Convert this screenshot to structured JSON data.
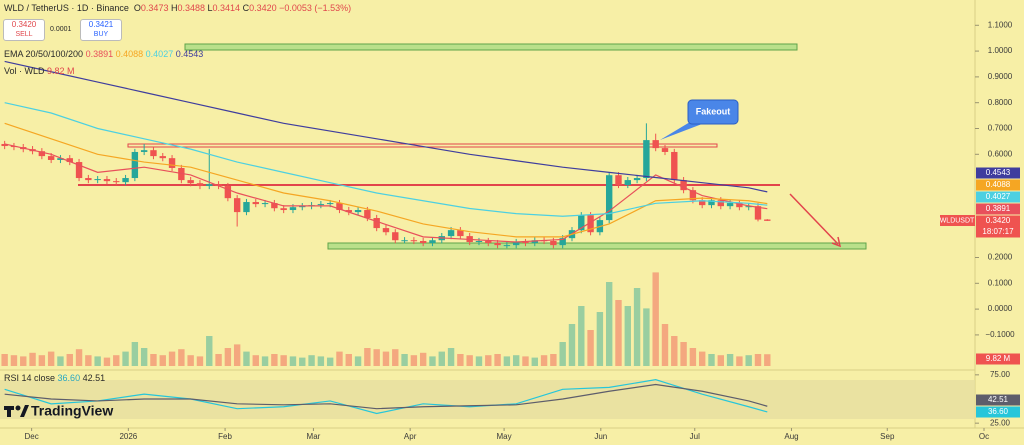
{
  "header": {
    "symbol": "WLD / TetherUS · 1D · Binance",
    "ohlc": [
      {
        "k": "O",
        "v": "0.3473"
      },
      {
        "k": "H",
        "v": "0.3488"
      },
      {
        "k": "L",
        "v": "0.3414"
      },
      {
        "k": "C",
        "v": "0.3420"
      }
    ],
    "change": "−0.0053 (−1.53%)",
    "sell": {
      "price": "0.3420",
      "label": "SELL"
    },
    "spread": "0.0001",
    "buy": {
      "price": "0.3421",
      "label": "BUY"
    },
    "ema_legend": {
      "name": "EMA 20/50/100/200",
      "values": [
        "0.3891",
        "0.4088",
        "0.4027",
        "0.4543"
      ]
    },
    "vol_legend": {
      "name": "Vol · WLD",
      "value": "9.82 M"
    },
    "rsi_legend": {
      "name": "RSI 14 close",
      "values": [
        "36.60",
        "42.51"
      ]
    },
    "symbol_tag": "WLDUSDT",
    "countdown": "18:07:17",
    "annotation": "Fakeout",
    "brand": "TradingView"
  },
  "chart_data": {
    "type": "candlestick",
    "up_color": "#26a69a",
    "down_color": "#ef5350",
    "open": [
      0.64,
      0.632,
      0.628,
      0.62,
      0.612,
      0.593,
      0.578,
      0.585,
      0.57,
      0.508,
      0.5,
      0.504,
      0.496,
      0.492,
      0.508,
      0.609,
      0.616,
      0.593,
      0.585,
      0.547,
      0.5,
      0.488,
      0.477,
      0.484,
      0.477,
      0.43,
      0.376,
      0.415,
      0.407,
      0.411,
      0.391,
      0.384,
      0.395,
      0.399,
      0.403,
      0.407,
      0.411,
      0.384,
      0.376,
      0.384,
      0.353,
      0.314,
      0.298,
      0.267,
      0.267,
      0.264,
      0.256,
      0.267,
      0.283,
      0.306,
      0.283,
      0.26,
      0.264,
      0.256,
      0.248,
      0.248,
      0.26,
      0.256,
      0.267,
      0.264,
      0.248,
      0.275,
      0.306,
      0.364,
      0.298,
      0.345,
      0.519,
      0.481,
      0.5,
      0.508,
      0.655,
      0.624,
      0.609,
      0.5,
      0.461,
      0.422,
      0.403,
      0.422,
      0.399,
      0.411,
      0.395,
      0.399,
      0.3473
    ],
    "high": [
      0.652,
      0.644,
      0.64,
      0.632,
      0.624,
      0.605,
      0.597,
      0.597,
      0.582,
      0.52,
      0.516,
      0.516,
      0.508,
      0.52,
      0.621,
      0.64,
      0.628,
      0.605,
      0.597,
      0.559,
      0.512,
      0.5,
      0.62,
      0.496,
      0.489,
      0.442,
      0.427,
      0.427,
      0.423,
      0.423,
      0.403,
      0.407,
      0.411,
      0.415,
      0.419,
      0.423,
      0.423,
      0.396,
      0.396,
      0.396,
      0.365,
      0.326,
      0.31,
      0.279,
      0.279,
      0.276,
      0.279,
      0.295,
      0.318,
      0.318,
      0.295,
      0.276,
      0.276,
      0.268,
      0.26,
      0.272,
      0.272,
      0.279,
      0.279,
      0.276,
      0.287,
      0.318,
      0.376,
      0.376,
      0.357,
      0.531,
      0.531,
      0.512,
      0.52,
      0.72,
      0.68,
      0.636,
      0.621,
      0.512,
      0.473,
      0.434,
      0.434,
      0.434,
      0.423,
      0.423,
      0.411,
      0.411,
      0.3488
    ],
    "low": [
      0.62,
      0.616,
      0.608,
      0.6,
      0.581,
      0.566,
      0.566,
      0.558,
      0.496,
      0.488,
      0.488,
      0.484,
      0.48,
      0.48,
      0.496,
      0.597,
      0.581,
      0.573,
      0.535,
      0.488,
      0.476,
      0.465,
      0.465,
      0.465,
      0.418,
      0.32,
      0.364,
      0.395,
      0.395,
      0.379,
      0.372,
      0.372,
      0.383,
      0.387,
      0.391,
      0.395,
      0.372,
      0.364,
      0.364,
      0.341,
      0.302,
      0.286,
      0.255,
      0.255,
      0.252,
      0.244,
      0.244,
      0.255,
      0.271,
      0.271,
      0.248,
      0.248,
      0.244,
      0.236,
      0.236,
      0.236,
      0.244,
      0.244,
      0.252,
      0.236,
      0.236,
      0.263,
      0.294,
      0.286,
      0.286,
      0.333,
      0.469,
      0.469,
      0.488,
      0.496,
      0.612,
      0.597,
      0.488,
      0.449,
      0.41,
      0.391,
      0.391,
      0.387,
      0.387,
      0.383,
      0.383,
      0.34,
      0.3414
    ],
    "close": [
      0.632,
      0.628,
      0.62,
      0.612,
      0.593,
      0.578,
      0.585,
      0.57,
      0.508,
      0.5,
      0.504,
      0.496,
      0.492,
      0.508,
      0.609,
      0.616,
      0.593,
      0.585,
      0.547,
      0.5,
      0.488,
      0.477,
      0.484,
      0.477,
      0.43,
      0.376,
      0.415,
      0.407,
      0.411,
      0.391,
      0.384,
      0.395,
      0.399,
      0.403,
      0.407,
      0.411,
      0.384,
      0.376,
      0.384,
      0.353,
      0.314,
      0.298,
      0.267,
      0.267,
      0.264,
      0.256,
      0.267,
      0.283,
      0.306,
      0.283,
      0.26,
      0.264,
      0.256,
      0.248,
      0.248,
      0.26,
      0.256,
      0.267,
      0.264,
      0.248,
      0.275,
      0.306,
      0.364,
      0.298,
      0.345,
      0.519,
      0.481,
      0.5,
      0.508,
      0.655,
      0.624,
      0.609,
      0.5,
      0.461,
      0.422,
      0.403,
      0.422,
      0.399,
      0.411,
      0.395,
      0.399,
      0.347,
      0.342
    ],
    "xlim": [
      0,
      105.8
    ],
    "xticks": [
      {
        "value": 3.4,
        "label": "Dec"
      },
      {
        "value": 13.8,
        "label": "2026"
      },
      {
        "value": 24.2,
        "label": "Feb"
      },
      {
        "value": 33.7,
        "label": "Mar"
      },
      {
        "value": 44.1,
        "label": "Apr"
      },
      {
        "value": 54.2,
        "label": "May"
      },
      {
        "value": 64.6,
        "label": "Jun"
      },
      {
        "value": 74.7,
        "label": "Jul"
      },
      {
        "value": 85.1,
        "label": "Aug"
      },
      {
        "value": 95.4,
        "label": "Sep"
      },
      {
        "value": 105.8,
        "label": "Oc"
      }
    ],
    "ylim": [
      -0.236,
      1.198
    ],
    "yticks": [
      {
        "value": 1.1,
        "label": "1.1000"
      },
      {
        "value": 1.0,
        "label": "1.0000"
      },
      {
        "value": 0.9,
        "label": "0.9000"
      },
      {
        "value": 0.8,
        "label": "0.8000"
      },
      {
        "value": 0.7,
        "label": "0.7000"
      },
      {
        "value": 0.6,
        "label": "0.6000"
      },
      {
        "value": 0.2,
        "label": "0.2000"
      },
      {
        "value": 0.1,
        "label": "0.1000"
      },
      {
        "value": 0,
        "label": "0.0000"
      },
      {
        "value": -0.1,
        "label": "−0.1000"
      }
    ],
    "grid": false,
    "ema": {
      "x": [
        0.5,
        5.5,
        10.5,
        15.5,
        20.5,
        25.5,
        30.5,
        35.5,
        40.5,
        45.5,
        50.5,
        55.5,
        60.5,
        65.5,
        70.5,
        75.5,
        80.5,
        82.5
      ],
      "series": [
        {
          "color": "#e8505b",
          "values": [
            0.64,
            0.6,
            0.53,
            0.55,
            0.52,
            0.45,
            0.4,
            0.4,
            0.34,
            0.28,
            0.27,
            0.26,
            0.27,
            0.38,
            0.52,
            0.44,
            0.4,
            0.3891
          ]
        },
        {
          "color": "#f5a623",
          "values": [
            0.72,
            0.66,
            0.6,
            0.57,
            0.55,
            0.5,
            0.45,
            0.42,
            0.38,
            0.33,
            0.3,
            0.28,
            0.28,
            0.33,
            0.42,
            0.43,
            0.42,
            0.4088
          ]
        },
        {
          "color": "#4dd0e1",
          "values": [
            0.8,
            0.76,
            0.7,
            0.66,
            0.62,
            0.57,
            0.53,
            0.49,
            0.45,
            0.42,
            0.39,
            0.37,
            0.36,
            0.37,
            0.41,
            0.42,
            0.41,
            0.4027
          ]
        },
        {
          "color": "#3f3d9e",
          "values": [
            0.96,
            0.92,
            0.88,
            0.84,
            0.8,
            0.76,
            0.72,
            0.69,
            0.66,
            0.63,
            0.6,
            0.575,
            0.55,
            0.53,
            0.51,
            0.49,
            0.47,
            0.4543
          ]
        }
      ]
    },
    "volume": {
      "ylim": [
        0,
        80
      ],
      "values": [
        10,
        9,
        8,
        11,
        9,
        12,
        8,
        10,
        14,
        9,
        8,
        7,
        9,
        12,
        20,
        15,
        10,
        9,
        12,
        14,
        9,
        8,
        25,
        10,
        15,
        18,
        12,
        9,
        8,
        10,
        9,
        8,
        7,
        9,
        8,
        7,
        12,
        10,
        8,
        15,
        14,
        12,
        14,
        10,
        9,
        11,
        8,
        12,
        15,
        10,
        9,
        8,
        9,
        10,
        8,
        9,
        8,
        7,
        9,
        10,
        20,
        35,
        50,
        30,
        45,
        70,
        55,
        50,
        65,
        48,
        78,
        35,
        25,
        20,
        15,
        12,
        10,
        9,
        10,
        8,
        9,
        10,
        9.82
      ]
    },
    "rsi": {
      "ylim": [
        20,
        80
      ],
      "yticks": [
        {
          "value": 75,
          "label": "75.00"
        },
        {
          "value": 25,
          "label": "25.00"
        }
      ],
      "x": [
        0.5,
        5.5,
        10.5,
        15.5,
        20.5,
        25.5,
        30.5,
        35.5,
        40.5,
        45.5,
        50.5,
        55.5,
        60.5,
        65.5,
        70.5,
        75.5,
        80.5,
        82.5
      ],
      "series": [
        {
          "color": "#26c6da",
          "values": [
            60,
            45,
            48,
            55,
            50,
            40,
            42,
            48,
            35,
            45,
            42,
            45,
            60,
            62,
            70,
            55,
            42,
            36.6
          ]
        },
        {
          "color": "#5d5d6b",
          "values": [
            55,
            50,
            48,
            50,
            50,
            45,
            44,
            45,
            40,
            42,
            43,
            44,
            50,
            58,
            65,
            58,
            48,
            42.51
          ]
        }
      ]
    }
  }
}
